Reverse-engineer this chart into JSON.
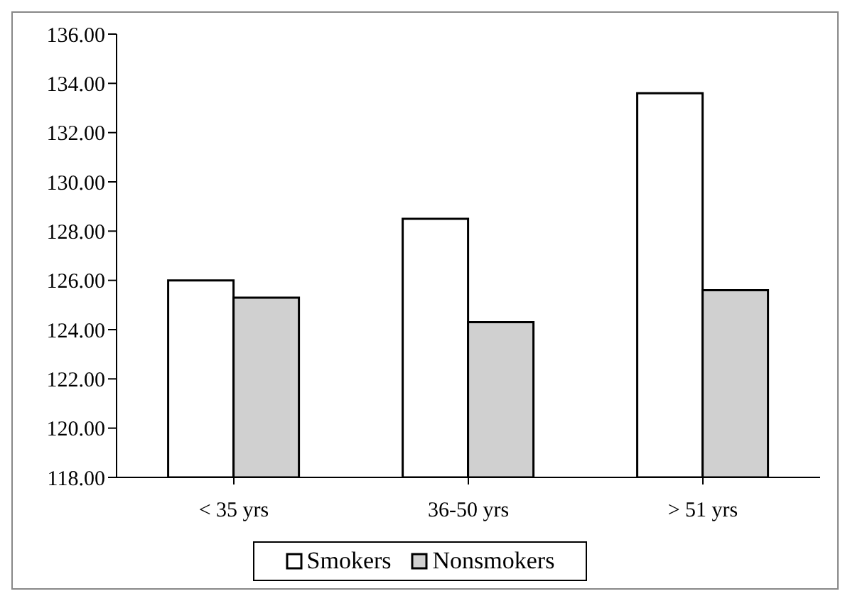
{
  "chart_data": {
    "type": "bar",
    "categories": [
      "< 35 yrs",
      "36-50 yrs",
      "> 51 yrs"
    ],
    "series": [
      {
        "name": "Smokers",
        "color": "#ffffff",
        "values": [
          126.0,
          128.5,
          133.6
        ]
      },
      {
        "name": "Nonsmokers",
        "color": "#d0d0d0",
        "values": [
          125.3,
          124.3,
          125.6
        ]
      }
    ],
    "ylim": [
      118,
      136
    ],
    "yticks": [
      {
        "value": 118,
        "label": "118.00"
      },
      {
        "value": 120,
        "label": "120.00"
      },
      {
        "value": 122,
        "label": "122.00"
      },
      {
        "value": 124,
        "label": "124.00"
      },
      {
        "value": 126,
        "label": "126.00"
      },
      {
        "value": 128,
        "label": "128.00"
      },
      {
        "value": 130,
        "label": "130.00"
      },
      {
        "value": 132,
        "label": "132.00"
      },
      {
        "value": 134,
        "label": "134.00"
      },
      {
        "value": 136,
        "label": "136.00"
      }
    ],
    "grid": false,
    "legend": "bottom"
  }
}
